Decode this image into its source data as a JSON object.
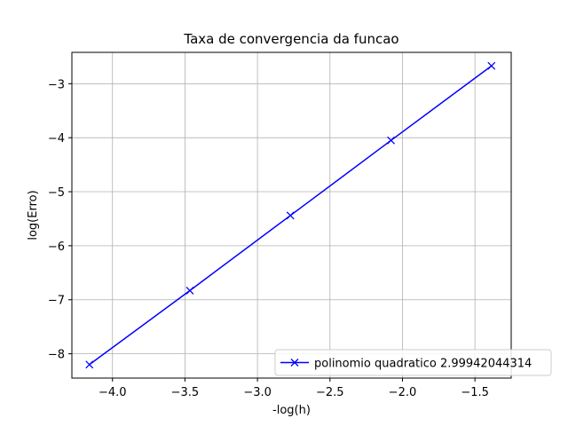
{
  "chart_data": {
    "type": "line",
    "title": "Taxa de convergencia da funcao",
    "xlabel": "-log(h)",
    "ylabel": "log(Erro)",
    "xlim": [
      -4.28,
      -1.25
    ],
    "ylim": [
      -8.45,
      -2.42
    ],
    "xticks": [
      -4.0,
      -3.5,
      -3.0,
      -2.5,
      -2.0,
      -1.5
    ],
    "xtick_labels": [
      "−4.0",
      "−3.5",
      "−3.0",
      "−2.5",
      "−2.0",
      "−1.5"
    ],
    "yticks": [
      -8,
      -7,
      -6,
      -5,
      -4,
      -3
    ],
    "ytick_labels": [
      "−8",
      "−7",
      "−6",
      "−5",
      "−4",
      "−3"
    ],
    "grid": true,
    "legend_position": "lower right",
    "series": [
      {
        "name": "polinomio quadratico 2.99942044314",
        "color": "#0000ff",
        "marker": "x",
        "x": [
          -4.159,
          -3.466,
          -2.773,
          -2.079,
          -1.386
        ],
        "y": [
          -8.2,
          -6.83,
          -5.44,
          -4.05,
          -2.67
        ]
      }
    ]
  }
}
